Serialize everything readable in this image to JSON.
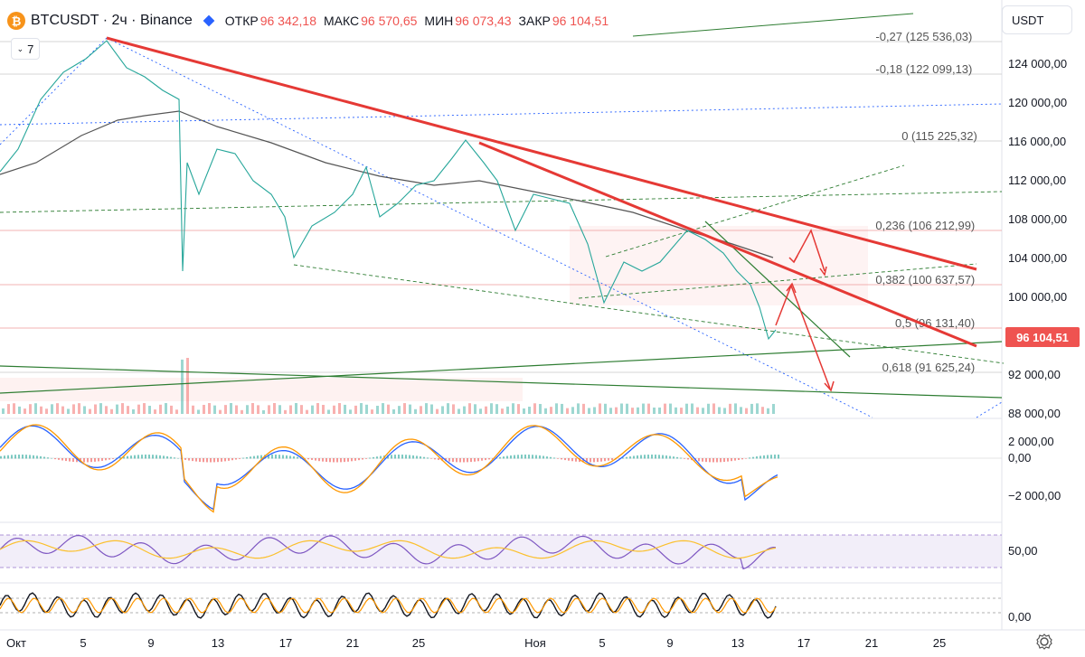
{
  "header": {
    "symbol": "BTCUSDT · 2ч · Binance",
    "coin_glyph": "₿",
    "ohlc": [
      {
        "key": "ОТКР",
        "val": "96 342,18"
      },
      {
        "key": "МАКС",
        "val": "96 570,65"
      },
      {
        "key": "МИН",
        "val": "96 073,43"
      },
      {
        "key": "ЗАКР",
        "val": "96 104,51"
      }
    ],
    "indicators_count": "7"
  },
  "currency_button": "USDT",
  "price_axis": [
    "124 000,00",
    "120 000,00",
    "116 000,00",
    "112 000,00",
    "108 000,00",
    "104 000,00",
    "100 000,00",
    "92 000,00",
    "88 000,00"
  ],
  "last_price": "96 104,51",
  "fib_levels": [
    {
      "label": "-0,27 (125 536,03)",
      "price": 125536.03
    },
    {
      "label": "-0,18 (122 099,13)",
      "price": 122099.13
    },
    {
      "label": "0 (115 225,32)",
      "price": 115225.32
    },
    {
      "label": "0,236 (106 212,99)",
      "price": 106212.99
    },
    {
      "label": "0,382 (100 637,57)",
      "price": 100637.57
    },
    {
      "label": "0,5 (96 131,40)",
      "price": 96131.4
    },
    {
      "label": "0,618 (91 625,24)",
      "price": 91625.24
    }
  ],
  "macd_axis": [
    "2 000,00",
    "0,00",
    "−2 000,00"
  ],
  "rsi_axis": [
    "50,00"
  ],
  "stoch_axis": [
    "0,00"
  ],
  "time_axis": [
    "Окт",
    "5",
    "9",
    "13",
    "17",
    "21",
    "25",
    "Ноя",
    "5",
    "9",
    "13",
    "17",
    "21",
    "25"
  ],
  "colors": {
    "red": "#ef5350",
    "trend": "#e53935",
    "green": "#2e7d32",
    "blue": "#2962ff",
    "ma": "#555555"
  }
}
